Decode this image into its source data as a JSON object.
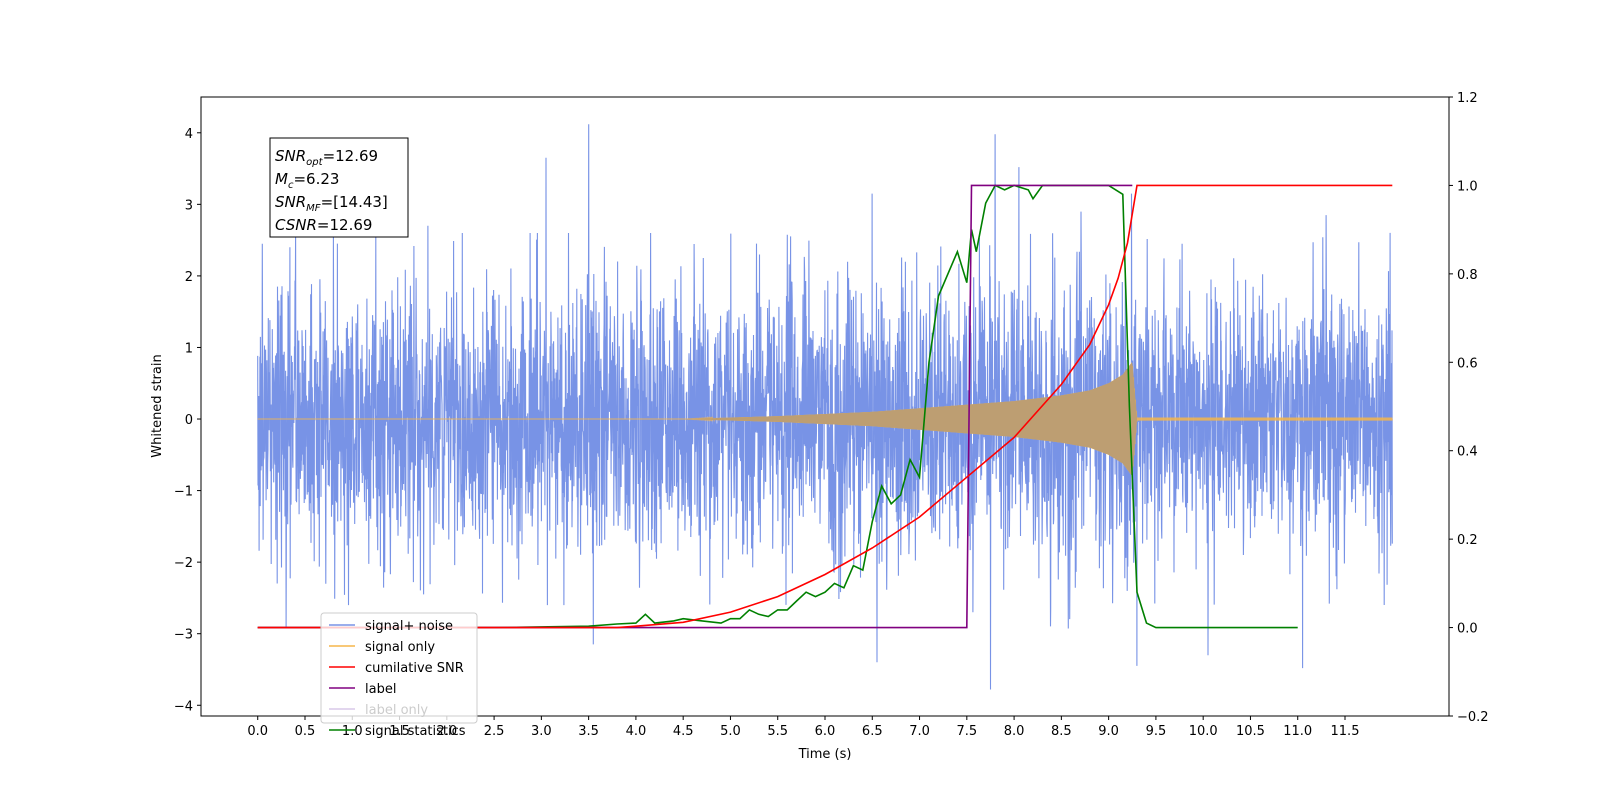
{
  "chart_data": {
    "type": "line",
    "xlabel": "Time (s)",
    "ylabel": "Whitened strain",
    "xlim": [
      -0.6,
      12.6
    ],
    "ylim": [
      -4.15,
      4.5
    ],
    "y2lim": [
      -0.2,
      1.2
    ],
    "x_ticks": [
      0.0,
      0.5,
      1.0,
      1.5,
      2.0,
      2.5,
      3.0,
      3.5,
      4.0,
      4.5,
      5.0,
      5.5,
      6.0,
      6.5,
      7.0,
      7.5,
      8.0,
      8.5,
      9.0,
      9.5,
      10.0,
      10.5,
      11.0,
      11.5
    ],
    "x_tick_labels": [
      "0.0",
      "0.5",
      "1.0",
      "1.5",
      "2.0",
      "2.5",
      "3.0",
      "3.5",
      "4.0",
      "4.5",
      "5.0",
      "5.5",
      "6.0",
      "6.5",
      "7.0",
      "7.5",
      "8.0",
      "8.5",
      "9.0",
      "9.5",
      "10.0",
      "10.5",
      "11.0",
      "11.5"
    ],
    "y_ticks": [
      -4,
      -3,
      -2,
      -1,
      0,
      1,
      2,
      3,
      4
    ],
    "y_tick_labels": [
      "−4",
      "−3",
      "−2",
      "−1",
      "0",
      "1",
      "2",
      "3",
      "4"
    ],
    "y2_ticks": [
      -0.2,
      0.0,
      0.2,
      0.4,
      0.6,
      0.8,
      1.0,
      1.2
    ],
    "y2_tick_labels": [
      "−0.2",
      "0.0",
      "0.2",
      "0.4",
      "0.6",
      "0.8",
      "1.0",
      "1.2"
    ],
    "grid": false,
    "legend_position": "lower-left",
    "annotation_box": {
      "lines": [
        {
          "sym": "SNR",
          "sub": "opt",
          "value": "=12.69"
        },
        {
          "sym": "M",
          "sub": "c",
          "value": "=6.23"
        },
        {
          "sym": "SNR",
          "sub": "MF",
          "value": "=[14.43]"
        },
        {
          "sym": "CSNR",
          "sub": "",
          "value": "=12.69"
        }
      ]
    },
    "series": [
      {
        "name": "signal+ noise",
        "axis": "left",
        "color": "#7893e6",
        "kind": "noise",
        "x_range": [
          0.0,
          12.0
        ],
        "typical_envelope": 1.6,
        "peaks": [
          [
            0.05,
            2.45
          ],
          [
            0.4,
            2.6
          ],
          [
            1.8,
            2.7
          ],
          [
            3.05,
            3.65
          ],
          [
            3.5,
            4.12
          ],
          [
            6.5,
            3.15
          ],
          [
            7.8,
            3.98
          ],
          [
            8.05,
            3.52
          ],
          [
            11.3,
            2.85
          ]
        ],
        "troughs": [
          [
            0.3,
            -2.9
          ],
          [
            3.55,
            -3.15
          ],
          [
            6.55,
            -3.4
          ],
          [
            7.75,
            -3.78
          ],
          [
            9.3,
            -3.45
          ],
          [
            10.05,
            -3.3
          ],
          [
            11.05,
            -3.48
          ]
        ]
      },
      {
        "name": "signal only",
        "axis": "left",
        "color": "#f5b54a",
        "kind": "chirp",
        "x_range": [
          0.0,
          12.0
        ],
        "envelope": {
          "t": [
            0.0,
            4.5,
            5.5,
            6.5,
            7.0,
            7.5,
            8.0,
            8.5,
            8.8,
            9.0,
            9.15,
            9.25,
            9.3,
            12.0
          ],
          "amp": [
            0.0,
            0.0,
            0.04,
            0.1,
            0.15,
            0.2,
            0.25,
            0.33,
            0.4,
            0.5,
            0.62,
            0.8,
            0.02,
            0.02
          ]
        }
      },
      {
        "name": "cumilative SNR",
        "axis": "right",
        "color": "#ff0000",
        "x": [
          0.0,
          3.8,
          4.0,
          4.5,
          5.0,
          5.5,
          6.0,
          6.5,
          7.0,
          7.5,
          8.0,
          8.5,
          8.8,
          9.0,
          9.1,
          9.2,
          9.3,
          12.0
        ],
        "y": [
          0.0,
          0.0,
          0.003,
          0.012,
          0.035,
          0.07,
          0.12,
          0.18,
          0.25,
          0.34,
          0.43,
          0.55,
          0.64,
          0.73,
          0.79,
          0.87,
          1.0,
          1.0
        ]
      },
      {
        "name": "label",
        "axis": "right",
        "color": "#800080",
        "x": [
          0.0,
          7.5,
          7.55,
          9.25
        ],
        "y": [
          0.0,
          0.0,
          1.0,
          1.0
        ]
      },
      {
        "name": "label only",
        "axis": "right",
        "color": "#d8c8e8",
        "x": [],
        "y": []
      },
      {
        "name": "signal statistics",
        "axis": "right",
        "color": "#008000",
        "x": [
          0.0,
          2.5,
          3.5,
          3.8,
          4.0,
          4.1,
          4.2,
          4.4,
          4.5,
          4.7,
          4.9,
          5.0,
          5.1,
          5.2,
          5.3,
          5.4,
          5.5,
          5.6,
          5.7,
          5.8,
          5.9,
          6.0,
          6.1,
          6.2,
          6.3,
          6.4,
          6.5,
          6.6,
          6.7,
          6.8,
          6.9,
          7.0,
          7.1,
          7.2,
          7.3,
          7.4,
          7.5,
          7.55,
          7.6,
          7.7,
          7.8,
          7.9,
          8.0,
          8.15,
          8.2,
          8.3,
          8.4,
          9.0,
          9.15,
          9.22,
          9.3,
          9.4,
          9.5,
          11.0
        ],
        "y": [
          0.0,
          0.0,
          0.003,
          0.008,
          0.01,
          0.03,
          0.01,
          0.015,
          0.02,
          0.015,
          0.01,
          0.02,
          0.02,
          0.04,
          0.03,
          0.025,
          0.04,
          0.04,
          0.06,
          0.08,
          0.07,
          0.08,
          0.1,
          0.09,
          0.14,
          0.13,
          0.24,
          0.32,
          0.28,
          0.3,
          0.38,
          0.34,
          0.6,
          0.75,
          0.8,
          0.85,
          0.78,
          0.9,
          0.85,
          0.96,
          1.0,
          0.99,
          1.0,
          0.99,
          0.97,
          1.0,
          1.0,
          1.0,
          0.98,
          0.5,
          0.08,
          0.01,
          0.0,
          0.0
        ]
      }
    ]
  }
}
